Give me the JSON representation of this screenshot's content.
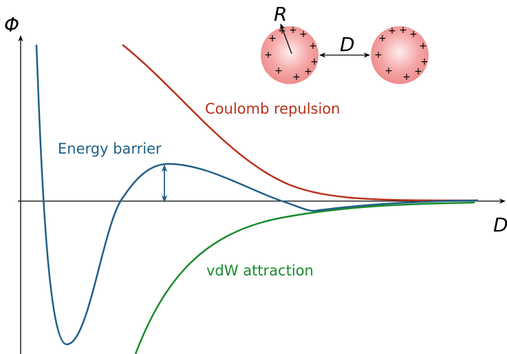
{
  "axis_labels": {
    "y": "Φ",
    "x": "D"
  },
  "sphere_labels": {
    "radius": "R",
    "distance": "D",
    "charge": "+"
  },
  "curve_labels": {
    "coulomb": "Coulomb repulsion",
    "barrier": "Energy barrier",
    "vdw": "vdW attraction"
  }
}
